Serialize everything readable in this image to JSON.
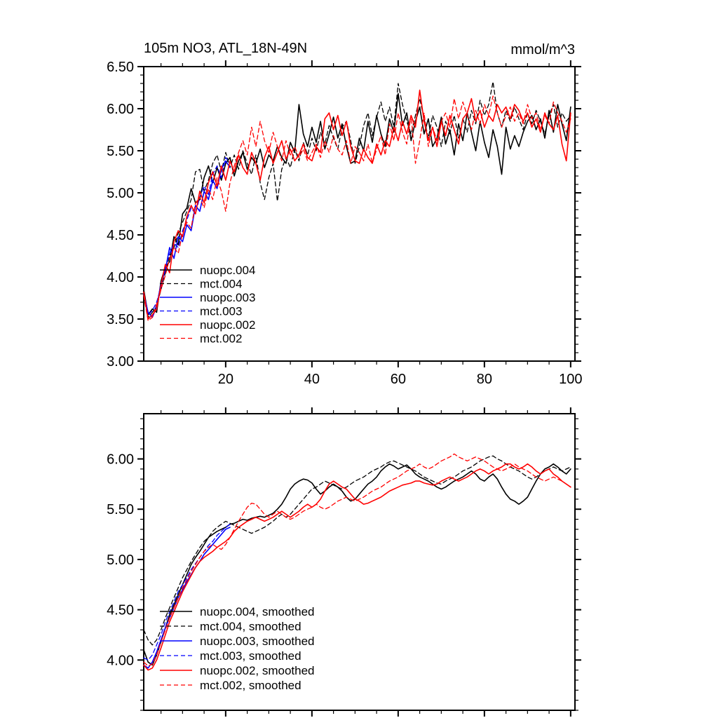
{
  "page": {
    "background": "#ffffff"
  },
  "chart_data": [
    {
      "type": "line",
      "title": "105m NO3, ATL_18N-49N",
      "right_title": "mmol/m^3",
      "xlabel": "",
      "ylabel": "",
      "xlim": [
        1,
        101
      ],
      "ylim": [
        3.0,
        6.5
      ],
      "x_start": 1,
      "x_step": 1,
      "x_major_ticks": [
        20,
        40,
        60,
        80,
        100
      ],
      "x_tick_labels": [
        "20",
        "40",
        "60",
        "80",
        "100"
      ],
      "x_minor_step": 5,
      "y_major_ticks": [
        3.0,
        3.5,
        4.0,
        4.5,
        5.0,
        5.5,
        6.0,
        6.5
      ],
      "y_tick_labels": [
        "3.00",
        "3.50",
        "4.00",
        "4.50",
        "5.00",
        "5.50",
        "6.00",
        "6.50"
      ],
      "y_minor_step": 0.1,
      "grid": false,
      "legend_position": "lower-left-inside",
      "series": [
        {
          "name": "nuopc.004",
          "color": "#000000",
          "style": "solid",
          "values": [
            3.85,
            3.55,
            3.62,
            3.58,
            3.95,
            4.12,
            4.18,
            4.48,
            4.38,
            4.75,
            4.82,
            5.05,
            4.88,
            4.92,
            5.18,
            5.32,
            5.12,
            5.3,
            5.15,
            5.35,
            5.42,
            5.2,
            5.38,
            5.48,
            5.28,
            5.42,
            5.35,
            5.52,
            5.3,
            5.45,
            5.38,
            5.55,
            5.42,
            5.35,
            5.6,
            5.48,
            6.05,
            5.7,
            5.55,
            5.78,
            5.6,
            5.85,
            5.52,
            5.7,
            5.9,
            5.65,
            5.82,
            5.55,
            5.35,
            5.38,
            5.65,
            5.5,
            5.85,
            5.6,
            5.92,
            5.7,
            5.55,
            5.88,
            5.72,
            6.18,
            5.8,
            5.95,
            5.62,
            5.85,
            6.02,
            5.7,
            5.88,
            5.55,
            5.65,
            5.9,
            5.58,
            5.75,
            5.45,
            5.82,
            5.62,
            5.95,
            5.72,
            5.5,
            5.85,
            5.6,
            5.42,
            5.75,
            5.55,
            5.22,
            5.78,
            5.52,
            5.68,
            5.55,
            5.72,
            5.85,
            5.92,
            5.75,
            5.88,
            5.65,
            5.98,
            5.72,
            6.05,
            5.82,
            5.62,
            6.02
          ]
        },
        {
          "name": "mct.004",
          "color": "#000000",
          "style": "dashed",
          "values": [
            3.8,
            3.52,
            3.58,
            3.65,
            3.85,
            4.05,
            4.25,
            4.35,
            4.52,
            4.65,
            4.78,
            4.92,
            5.25,
            5.28,
            5.02,
            5.15,
            5.35,
            5.45,
            5.25,
            5.48,
            5.3,
            5.45,
            5.28,
            5.5,
            5.35,
            5.22,
            5.45,
            5.12,
            4.92,
            5.18,
            5.35,
            4.9,
            5.28,
            5.42,
            5.3,
            5.52,
            5.38,
            5.6,
            5.45,
            5.65,
            5.5,
            5.72,
            5.58,
            5.8,
            5.65,
            5.52,
            5.78,
            5.85,
            5.62,
            5.35,
            5.55,
            5.8,
            5.95,
            5.68,
            5.9,
            6.08,
            5.85,
            6.02,
            5.78,
            6.3,
            6.05,
            5.85,
            5.7,
            5.92,
            6.12,
            5.88,
            5.65,
            5.92,
            5.78,
            5.55,
            5.85,
            5.7,
            5.92,
            5.65,
            5.88,
            5.72,
            5.98,
            5.82,
            6.1,
            5.92,
            6.05,
            6.32,
            5.95,
            5.78,
            5.98,
            5.85,
            6.02,
            5.88,
            5.75,
            5.95,
            5.82,
            5.98,
            5.85,
            5.7,
            5.92,
            6.05,
            5.78,
            5.95,
            5.85,
            5.92
          ]
        },
        {
          "name": "nuopc.003",
          "color": "#0000ff",
          "style": "solid",
          "values": [
            3.8,
            3.58,
            3.52,
            3.65,
            3.92,
            4.08,
            4.35,
            4.22,
            4.48,
            4.42,
            4.62,
            4.55,
            4.85,
            4.78,
            5.02,
            4.92,
            5.15,
            5.05,
            5.28,
            5.38,
            5.3
          ]
        },
        {
          "name": "mct.003",
          "color": "#0000ff",
          "style": "dashed",
          "values": [
            3.78,
            3.55,
            3.6,
            3.7,
            3.88,
            4.12,
            4.28,
            4.4,
            4.35,
            4.55,
            4.68,
            4.82,
            4.75,
            4.95,
            5.08,
            4.98,
            5.22,
            5.32,
            5.18,
            5.42,
            5.35
          ]
        },
        {
          "name": "nuopc.002",
          "color": "#ff0000",
          "style": "solid",
          "values": [
            3.82,
            3.5,
            3.55,
            3.62,
            3.9,
            4.15,
            4.05,
            4.42,
            4.55,
            4.48,
            4.72,
            4.85,
            4.75,
            5.02,
            4.88,
            5.12,
            5.25,
            5.08,
            5.32,
            5.15,
            5.38,
            5.25,
            5.45,
            5.3,
            5.22,
            5.48,
            5.35,
            5.15,
            5.42,
            5.55,
            5.35,
            5.48,
            5.62,
            5.4,
            5.52,
            5.38,
            5.45,
            5.58,
            5.42,
            5.38,
            5.55,
            5.48,
            5.88,
            5.95,
            5.75,
            5.92,
            5.68,
            5.85,
            5.55,
            5.38,
            5.35,
            5.52,
            5.42,
            5.35,
            5.58,
            5.45,
            5.62,
            5.55,
            5.78,
            5.62,
            5.85,
            5.7,
            5.92,
            5.78,
            6.22,
            5.85,
            5.62,
            5.78,
            5.55,
            5.85,
            5.68,
            5.92,
            5.75,
            5.58,
            5.88,
            5.95,
            6.12,
            5.85,
            5.98,
            5.78,
            5.92,
            5.85,
            6.05,
            5.95,
            6.02,
            5.88,
            6.05,
            5.98,
            5.85,
            5.95,
            5.78,
            5.88,
            5.72,
            5.95,
            5.82,
            5.75,
            5.92,
            5.58,
            5.38,
            5.95
          ]
        },
        {
          "name": "mct.002",
          "color": "#ff0000",
          "style": "dashed",
          "values": [
            3.78,
            3.48,
            3.52,
            3.68,
            3.85,
            4.02,
            4.22,
            4.35,
            4.28,
            4.52,
            4.65,
            4.58,
            4.88,
            4.95,
            4.82,
            5.05,
            4.92,
            5.18,
            5.02,
            4.78,
            5.12,
            5.32,
            5.48,
            5.62,
            5.45,
            5.78,
            5.55,
            5.85,
            5.62,
            5.48,
            5.72,
            5.55,
            5.38,
            5.62,
            5.45,
            5.55,
            5.42,
            5.52,
            5.38,
            5.48,
            5.58,
            5.42,
            5.62,
            5.48,
            5.68,
            5.52,
            5.45,
            5.62,
            5.35,
            5.55,
            5.48,
            5.38,
            5.58,
            5.35,
            5.52,
            5.68,
            5.45,
            5.82,
            5.62,
            5.95,
            5.72,
            5.58,
            5.92,
            5.35,
            5.62,
            5.95,
            5.55,
            5.78,
            5.62,
            5.85,
            5.95,
            5.78,
            6.12,
            5.88,
            6.08,
            5.92,
            5.75,
            5.98,
            5.82,
            6.05,
            5.92,
            6.15,
            5.95,
            5.78,
            5.92,
            6.02,
            5.85,
            5.95,
            5.82,
            6.05,
            5.88,
            5.95,
            5.75,
            5.92,
            5.82,
            6.08,
            5.95,
            5.85,
            5.72,
            5.88
          ]
        }
      ]
    },
    {
      "type": "line",
      "title": "",
      "right_title": "",
      "xlabel": "",
      "ylabel": "",
      "xlim": [
        1,
        101
      ],
      "ylim": [
        3.5,
        6.45
      ],
      "x_start": 1,
      "x_step": 1,
      "x_major_ticks": [
        20,
        40,
        60,
        80,
        100
      ],
      "x_tick_labels": [],
      "x_minor_step": 5,
      "y_major_ticks": [
        4.0,
        4.5,
        5.0,
        5.5,
        6.0
      ],
      "y_tick_labels": [
        "4.00",
        "4.50",
        "5.00",
        "5.50",
        "6.00"
      ],
      "y_minor_step": 0.1,
      "grid": false,
      "legend_position": "lower-left-inside",
      "series": [
        {
          "name": "nuopc.004, smoothed",
          "color": "#000000",
          "style": "solid",
          "values": [
            4.1,
            3.98,
            3.95,
            4.05,
            4.18,
            4.32,
            4.45,
            4.55,
            4.65,
            4.75,
            4.85,
            4.95,
            5.02,
            5.08,
            5.15,
            5.22,
            5.25,
            5.28,
            5.3,
            5.32,
            5.35,
            5.36,
            5.38,
            5.4,
            5.39,
            5.41,
            5.42,
            5.43,
            5.42,
            5.44,
            5.46,
            5.5,
            5.55,
            5.62,
            5.7,
            5.75,
            5.78,
            5.8,
            5.79,
            5.76,
            5.7,
            5.65,
            5.68,
            5.72,
            5.75,
            5.72,
            5.68,
            5.62,
            5.58,
            5.6,
            5.65,
            5.7,
            5.75,
            5.78,
            5.82,
            5.88,
            5.92,
            5.95,
            5.93,
            5.9,
            5.92,
            5.94,
            5.9,
            5.85,
            5.82,
            5.8,
            5.78,
            5.75,
            5.72,
            5.7,
            5.72,
            5.75,
            5.78,
            5.8,
            5.82,
            5.85,
            5.88,
            5.85,
            5.8,
            5.78,
            5.82,
            5.85,
            5.8,
            5.72,
            5.65,
            5.6,
            5.58,
            5.55,
            5.58,
            5.62,
            5.7,
            5.78,
            5.85,
            5.9,
            5.92,
            5.95,
            5.92,
            5.88,
            5.85,
            5.9
          ]
        },
        {
          "name": "mct.004, smoothed",
          "color": "#000000",
          "style": "dashed",
          "values": [
            4.3,
            4.2,
            4.15,
            4.2,
            4.3,
            4.42,
            4.52,
            4.62,
            4.72,
            4.82,
            4.9,
            4.98,
            5.05,
            5.12,
            5.18,
            5.22,
            5.28,
            5.32,
            5.35,
            5.38,
            5.36,
            5.34,
            5.32,
            5.3,
            5.28,
            5.26,
            5.28,
            5.3,
            5.32,
            5.35,
            5.38,
            5.42,
            5.45,
            5.42,
            5.45,
            5.5,
            5.55,
            5.6,
            5.65,
            5.7,
            5.72,
            5.75,
            5.78,
            5.76,
            5.74,
            5.72,
            5.7,
            5.72,
            5.75,
            5.78,
            5.8,
            5.82,
            5.85,
            5.88,
            5.9,
            5.92,
            5.95,
            5.97,
            5.98,
            5.96,
            5.94,
            5.92,
            5.9,
            5.88,
            5.85,
            5.82,
            5.8,
            5.78,
            5.76,
            5.75,
            5.78,
            5.8,
            5.82,
            5.85,
            5.88,
            5.9,
            5.92,
            5.95,
            5.98,
            6.0,
            6.02,
            6.03,
            6.0,
            5.98,
            5.95,
            5.92,
            5.9,
            5.88,
            5.85,
            5.82,
            5.8,
            5.82,
            5.85,
            5.88,
            5.9,
            5.92,
            5.9,
            5.88,
            5.9,
            5.92
          ]
        },
        {
          "name": "nuopc.003, smoothed",
          "color": "#0000ff",
          "style": "solid",
          "values": [
            3.95,
            3.92,
            3.98,
            4.08,
            4.2,
            4.32,
            4.42,
            4.52,
            4.62,
            4.7,
            4.78,
            4.85,
            4.92,
            4.98,
            5.05,
            5.1,
            5.15,
            5.2,
            5.25,
            5.3,
            5.32
          ]
        },
        {
          "name": "mct.003, smoothed",
          "color": "#0000ff",
          "style": "dashed",
          "values": [
            4.02,
            4.0,
            4.05,
            4.15,
            4.25,
            4.38,
            4.48,
            4.58,
            4.68,
            4.75,
            4.82,
            4.9,
            4.96,
            5.02,
            5.08,
            5.14,
            5.18,
            5.24,
            5.28,
            5.32,
            5.35
          ]
        },
        {
          "name": "nuopc.002, smoothed",
          "color": "#ff0000",
          "style": "solid",
          "values": [
            3.95,
            3.9,
            3.92,
            4.0,
            4.12,
            4.25,
            4.38,
            4.48,
            4.58,
            4.68,
            4.76,
            4.84,
            4.92,
            4.98,
            5.02,
            5.05,
            5.08,
            5.12,
            5.15,
            5.18,
            5.22,
            5.28,
            5.32,
            5.35,
            5.38,
            5.4,
            5.42,
            5.4,
            5.38,
            5.4,
            5.42,
            5.45,
            5.48,
            5.45,
            5.42,
            5.45,
            5.48,
            5.52,
            5.55,
            5.52,
            5.55,
            5.6,
            5.68,
            5.75,
            5.78,
            5.75,
            5.72,
            5.7,
            5.65,
            5.6,
            5.58,
            5.55,
            5.56,
            5.58,
            5.6,
            5.62,
            5.65,
            5.68,
            5.7,
            5.72,
            5.74,
            5.75,
            5.76,
            5.78,
            5.78,
            5.76,
            5.75,
            5.74,
            5.75,
            5.78,
            5.8,
            5.82,
            5.8,
            5.78,
            5.8,
            5.82,
            5.85,
            5.88,
            5.9,
            5.88,
            5.85,
            5.88,
            5.9,
            5.92,
            5.95,
            5.95,
            5.92,
            5.9,
            5.92,
            5.95,
            5.92,
            5.88,
            5.85,
            5.88,
            5.9,
            5.85,
            5.82,
            5.78,
            5.75,
            5.72
          ]
        },
        {
          "name": "mct.002, smoothed",
          "color": "#ff0000",
          "style": "dashed",
          "values": [
            3.98,
            3.94,
            3.96,
            4.05,
            4.18,
            4.3,
            4.42,
            4.52,
            4.62,
            4.72,
            4.8,
            4.88,
            4.95,
            5.02,
            5.08,
            5.12,
            5.15,
            5.12,
            5.1,
            5.15,
            5.22,
            5.3,
            5.38,
            5.45,
            5.52,
            5.56,
            5.55,
            5.5,
            5.45,
            5.42,
            5.45,
            5.48,
            5.45,
            5.42,
            5.4,
            5.42,
            5.45,
            5.48,
            5.5,
            5.52,
            5.55,
            5.52,
            5.5,
            5.52,
            5.55,
            5.58,
            5.6,
            5.62,
            5.6,
            5.58,
            5.6,
            5.62,
            5.65,
            5.68,
            5.7,
            5.72,
            5.75,
            5.78,
            5.8,
            5.82,
            5.85,
            5.88,
            5.9,
            5.92,
            5.95,
            5.92,
            5.9,
            5.92,
            5.95,
            5.98,
            6.0,
            6.02,
            6.05,
            6.02,
            6.0,
            5.98,
            6.0,
            6.02,
            6.0,
            5.98,
            5.95,
            5.92,
            5.9,
            5.88,
            5.9,
            5.92,
            5.95,
            5.92,
            5.9,
            5.88,
            5.85,
            5.82,
            5.8,
            5.78,
            5.8,
            5.82,
            5.8,
            5.78,
            5.75,
            5.72
          ]
        }
      ]
    }
  ]
}
